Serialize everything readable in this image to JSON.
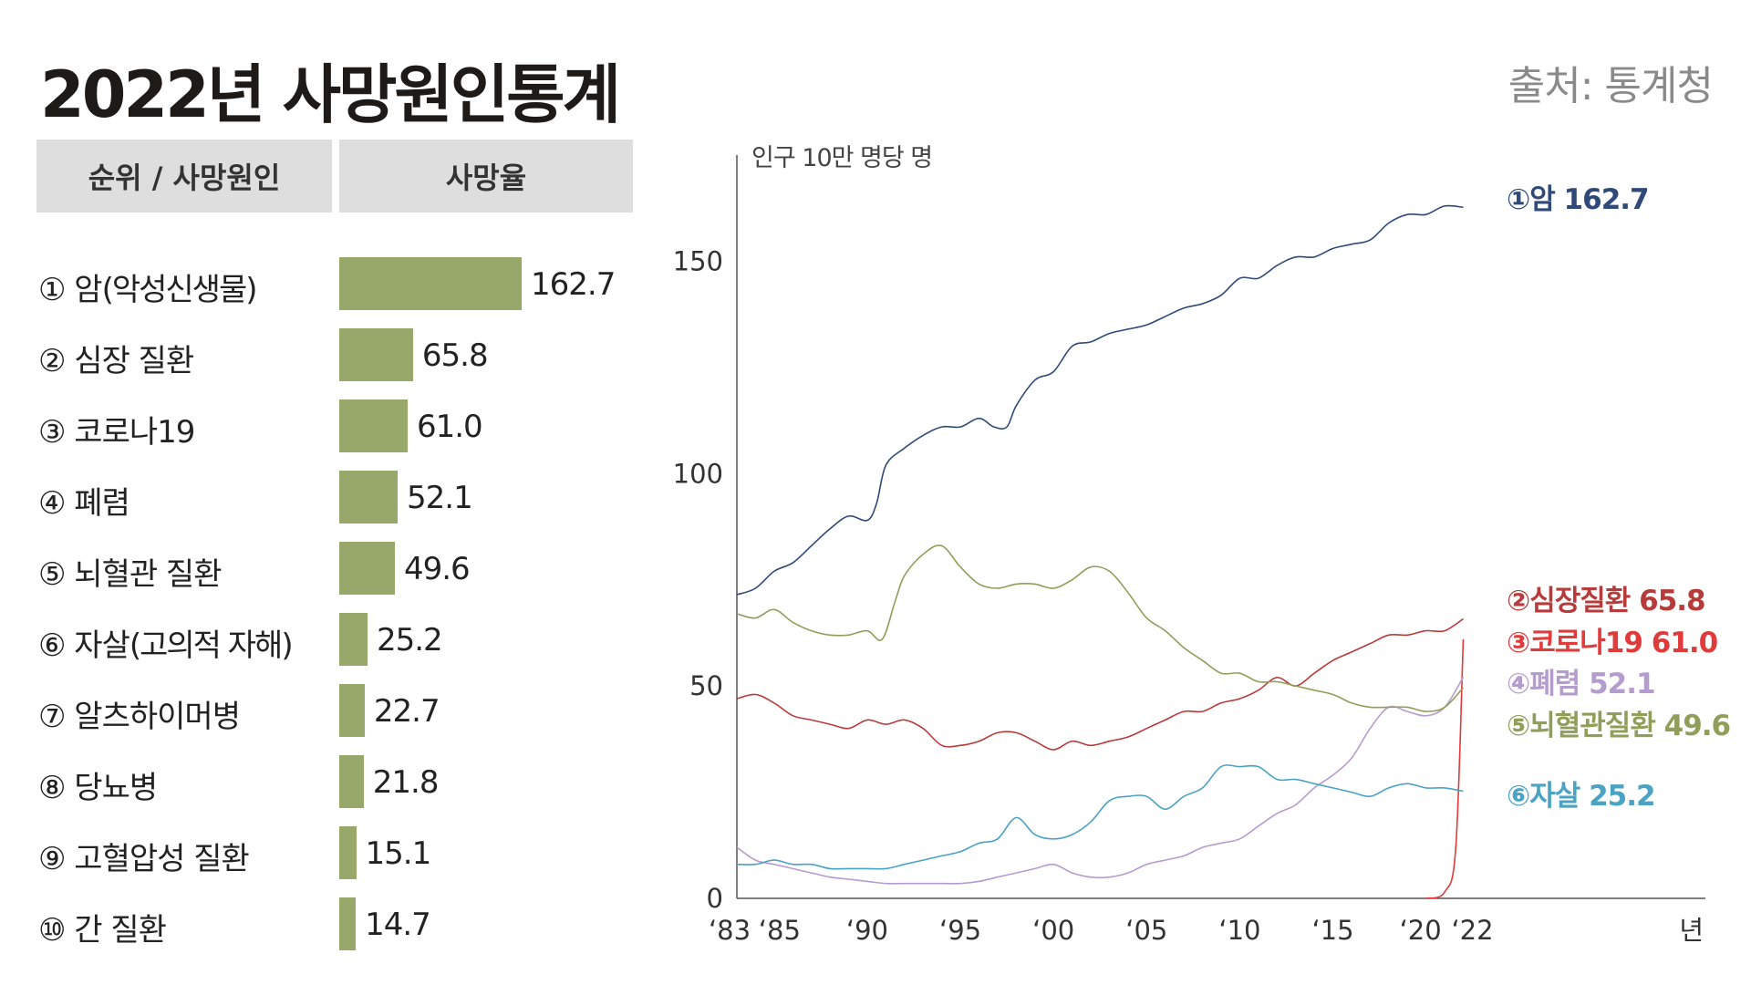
{
  "header": {
    "title": "2022년 사망원인통계",
    "source": "출처: 통계청"
  },
  "table": {
    "col_rank": "순위 / 사망원인",
    "col_rate": "사망율",
    "rows": [
      {
        "label": "① 암",
        "sub": "(악성신생물)",
        "value": "162.7"
      },
      {
        "label": "② 심장 질환",
        "sub": "",
        "value": "65.8"
      },
      {
        "label": "③ 코로나19",
        "sub": "",
        "value": "61.0"
      },
      {
        "label": "④ 폐렴",
        "sub": "",
        "value": "52.1"
      },
      {
        "label": "⑤ 뇌혈관 질환",
        "sub": "",
        "value": "49.6"
      },
      {
        "label": "⑥ 자살",
        "sub": "(고의적 자해)",
        "value": "25.2"
      },
      {
        "label": "⑦ 알츠하이머병",
        "sub": "",
        "value": "22.7"
      },
      {
        "label": "⑧ 당뇨병",
        "sub": "",
        "value": "21.8"
      },
      {
        "label": "⑨ 고혈압성 질환",
        "sub": "",
        "value": "15.1"
      },
      {
        "label": "⑩ 간 질환",
        "sub": "",
        "value": "14.7"
      }
    ]
  },
  "colors": {
    "bar": "#97a86a",
    "cancer": "#2f4a78",
    "heart": "#b83b3b",
    "corona": "#e03a3a",
    "pneumonia": "#b59ccf",
    "stroke": "#8f9f5a",
    "suicide": "#4aa3c4"
  },
  "chart_data": [
    {
      "type": "bar",
      "orientation": "horizontal",
      "categories": [
        "① 암(악성신생물)",
        "② 심장 질환",
        "③ 코로나19",
        "④ 폐렴",
        "⑤ 뇌혈관 질환",
        "⑥ 자살(고의적 자해)",
        "⑦ 알츠하이머병",
        "⑧ 당뇨병",
        "⑨ 고혈압성 질환",
        "⑩ 간 질환"
      ],
      "values": [
        162.7,
        65.8,
        61.0,
        52.1,
        49.6,
        25.2,
        22.7,
        21.8,
        15.1,
        14.7
      ]
    },
    {
      "type": "line",
      "ylabel": "인구 10만 명당 명",
      "xunit": "년",
      "ylim": [
        0,
        175
      ],
      "xlim": [
        1983,
        2035
      ],
      "yticks": [
        "0",
        "50",
        "100",
        "150"
      ],
      "xticks": [
        {
          "year": 1983,
          "label": "‘83"
        },
        {
          "year": 1985,
          "label": "‘85"
        },
        {
          "year": 1990,
          "label": "‘90"
        },
        {
          "year": 1995,
          "label": "‘95"
        },
        {
          "year": 2000,
          "label": "‘00"
        },
        {
          "year": 2005,
          "label": "‘05"
        },
        {
          "year": 2010,
          "label": "‘10"
        },
        {
          "year": 2015,
          "label": "‘15"
        },
        {
          "year": 2020,
          "label": "‘20"
        },
        {
          "year": 2022,
          "label": "‘22"
        }
      ],
      "series": [
        {
          "name": "①암",
          "label": "①암 162.7",
          "color": "cancer",
          "x": [
            1983,
            1984,
            1985,
            1986,
            1987,
            1988,
            1989,
            1990,
            1990.5,
            1991,
            1992,
            1993,
            1994,
            1995,
            1996,
            1996.8,
            1997.5,
            1998,
            1999,
            2000,
            2001,
            2002,
            2003,
            2004,
            2005,
            2006,
            2007,
            2008,
            2009,
            2010,
            2011,
            2012,
            2013,
            2014,
            2015,
            2016,
            2017,
            2018,
            2019,
            2020,
            2021,
            2022
          ],
          "y": [
            71.5,
            73,
            77,
            79,
            83,
            87,
            90,
            89,
            93,
            102,
            106,
            109,
            111,
            111,
            113,
            111,
            111,
            116,
            122,
            124,
            130,
            131,
            133,
            134,
            135,
            137,
            139,
            140,
            142,
            146,
            146,
            149,
            151,
            151,
            153,
            154,
            155,
            159,
            161,
            161,
            163,
            162.7
          ]
        },
        {
          "name": "②심장질환",
          "label": "②심장질환 65.8",
          "color": "heart",
          "x": [
            1983,
            1984,
            1985,
            1986,
            1987,
            1988,
            1989,
            1990,
            1991,
            1992,
            1993,
            1994,
            1995,
            1996,
            1997,
            1998,
            1999,
            2000,
            2001,
            2002,
            2003,
            2004,
            2005,
            2006,
            2007,
            2008,
            2009,
            2010,
            2011,
            2012,
            2013,
            2014,
            2015,
            2016,
            2017,
            2018,
            2019,
            2020,
            2021,
            2022
          ],
          "y": [
            47,
            48,
            46,
            43,
            42,
            41,
            40,
            42,
            41,
            42,
            40,
            36,
            36,
            37,
            39,
            39,
            37,
            35,
            37,
            36,
            37,
            38,
            40,
            42,
            44,
            44,
            46,
            47,
            49,
            52,
            50,
            53,
            56,
            58,
            60,
            62,
            62,
            63,
            63,
            65.8
          ]
        },
        {
          "name": "③코로나19",
          "label": "③코로나19 61.0",
          "color": "corona",
          "x": [
            2020,
            2021,
            2021.6,
            2022
          ],
          "y": [
            0,
            1.5,
            12,
            61.0
          ]
        },
        {
          "name": "④폐렴",
          "label": "④폐렴 52.1",
          "color": "pneumonia",
          "x": [
            1983,
            1984,
            1985,
            1986,
            1987,
            1988,
            1989,
            1990,
            1991,
            1992,
            1993,
            1994,
            1995,
            1996,
            1997,
            1998,
            1999,
            2000,
            2001,
            2002,
            2003,
            2004,
            2005,
            2006,
            2007,
            2008,
            2009,
            2010,
            2011,
            2012,
            2013,
            2014,
            2015,
            2016,
            2017,
            2018,
            2019,
            2020,
            2021,
            2022
          ],
          "y": [
            12,
            9,
            8,
            7,
            6,
            5,
            4.5,
            4,
            3.5,
            3.5,
            3.5,
            3.5,
            3.5,
            4,
            5,
            6,
            7,
            8,
            6,
            5,
            5,
            6,
            8,
            9,
            10,
            12,
            13,
            14,
            17,
            20,
            22,
            26,
            29,
            33,
            40,
            45,
            44,
            43,
            45,
            52.1
          ]
        },
        {
          "name": "⑤뇌혈관질환",
          "label": "⑤뇌혈관질환 49.6",
          "color": "stroke",
          "x": [
            1983,
            1984,
            1985,
            1986,
            1987,
            1988,
            1989,
            1990,
            1990.8,
            1991.5,
            1992,
            1993,
            1994,
            1995,
            1996,
            1997,
            1998,
            1999,
            2000,
            2001,
            2002,
            2003,
            2004,
            2005,
            2006,
            2007,
            2008,
            2009,
            2010,
            2011,
            2012,
            2013,
            2014,
            2015,
            2016,
            2017,
            2018,
            2019,
            2020,
            2021,
            2022
          ],
          "y": [
            67,
            66,
            68,
            65,
            63,
            62,
            62,
            63,
            61,
            70,
            76,
            81,
            83,
            78,
            74,
            73,
            74,
            74,
            73,
            75,
            78,
            77,
            72,
            66,
            63,
            59,
            56,
            53,
            53,
            51,
            51,
            50,
            49,
            48,
            46,
            45,
            45,
            45,
            44,
            45,
            49.6
          ]
        },
        {
          "name": "⑥자살",
          "label": "⑥자살 25.2",
          "color": "suicide",
          "x": [
            1983,
            1984,
            1985,
            1986,
            1987,
            1988,
            1989,
            1990,
            1991,
            1992,
            1993,
            1994,
            1995,
            1996,
            1997,
            1998,
            1999,
            2000,
            2001,
            2002,
            2003,
            2004,
            2005,
            2006,
            2007,
            2008,
            2009,
            2010,
            2011,
            2012,
            2013,
            2014,
            2015,
            2016,
            2017,
            2018,
            2019,
            2020,
            2021,
            2022
          ],
          "y": [
            8,
            8,
            9,
            8,
            8,
            7,
            7,
            7,
            7,
            8,
            9,
            10,
            11,
            13,
            14,
            19,
            15,
            14,
            15,
            18,
            23,
            24,
            24,
            21,
            24,
            26,
            31,
            31,
            31,
            28,
            28,
            27,
            26,
            25,
            24,
            26,
            27,
            26,
            26,
            25.2
          ]
        }
      ]
    }
  ]
}
